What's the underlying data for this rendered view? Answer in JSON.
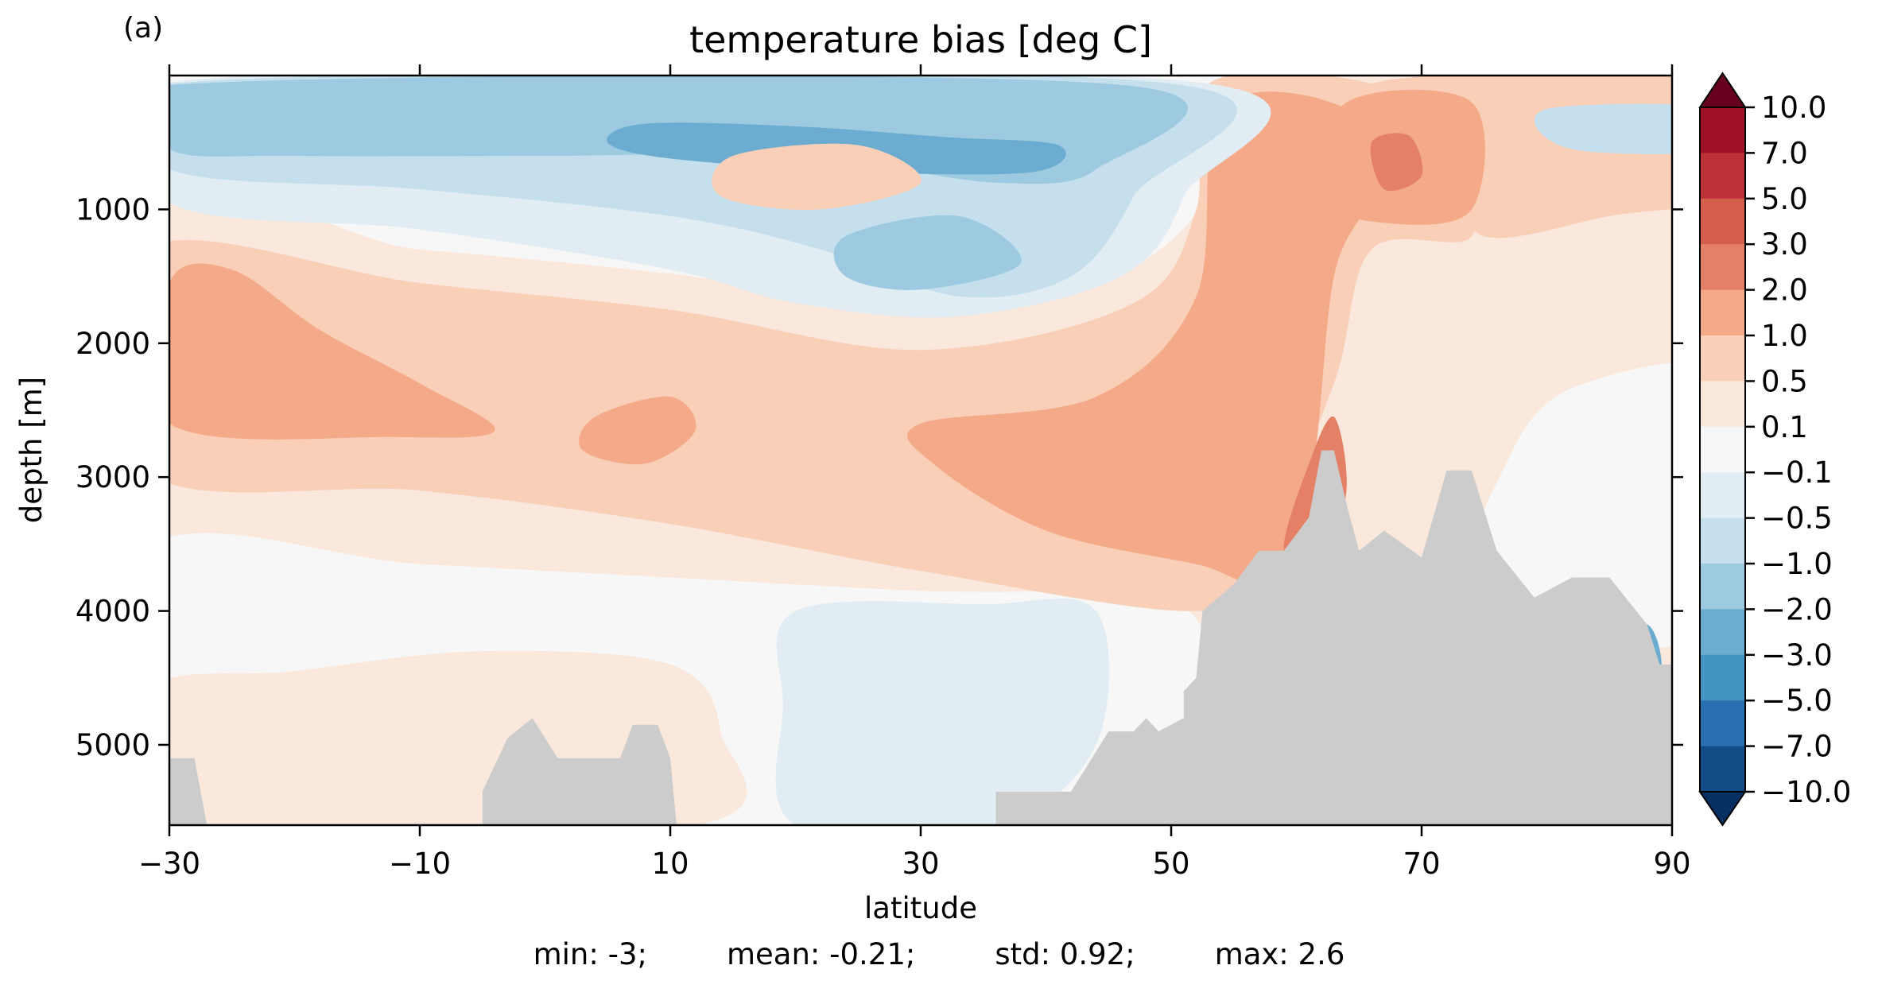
{
  "panel_label": "(a)",
  "chart_data": {
    "type": "heatmap",
    "title": "temperature bias [deg C]",
    "xlabel": "latitude",
    "ylabel": "depth [m]",
    "xlim": [
      -30,
      90
    ],
    "ylim": [
      5600,
      0
    ],
    "xticks": [
      "−30",
      "−10",
      "10",
      "30",
      "50",
      "70",
      "90"
    ],
    "xtick_values": [
      -30,
      -10,
      10,
      30,
      50,
      70,
      90
    ],
    "yticks": [
      "1000",
      "2000",
      "3000",
      "4000",
      "5000"
    ],
    "ytick_values": [
      1000,
      2000,
      3000,
      4000,
      5000
    ],
    "colorbar": {
      "levels": [
        "−10.0",
        "−7.0",
        "−5.0",
        "−3.0",
        "−2.0",
        "−1.0",
        "−0.5",
        "−0.1",
        "0.1",
        "0.5",
        "1.0",
        "2.0",
        "3.0",
        "5.0",
        "7.0",
        "10.0"
      ],
      "colors": [
        "#053061",
        "#134c87",
        "#2a71b2",
        "#4393c3",
        "#6bacd0",
        "#9dcae0",
        "#c5dfec",
        "#e2edf3",
        "#f7f7f7",
        "#fae8dd",
        "#f9cfb8",
        "#f4aa88",
        "#e48066",
        "#d35f4a",
        "#bd3036",
        "#a11228",
        "#67001f"
      ],
      "extend": "both"
    },
    "bathymetry_color": "#cccccc",
    "stats": {
      "min": "min: -3;",
      "mean": "mean: -0.21;",
      "std": "std: 0.92;",
      "max": "max: 2.6"
    }
  }
}
